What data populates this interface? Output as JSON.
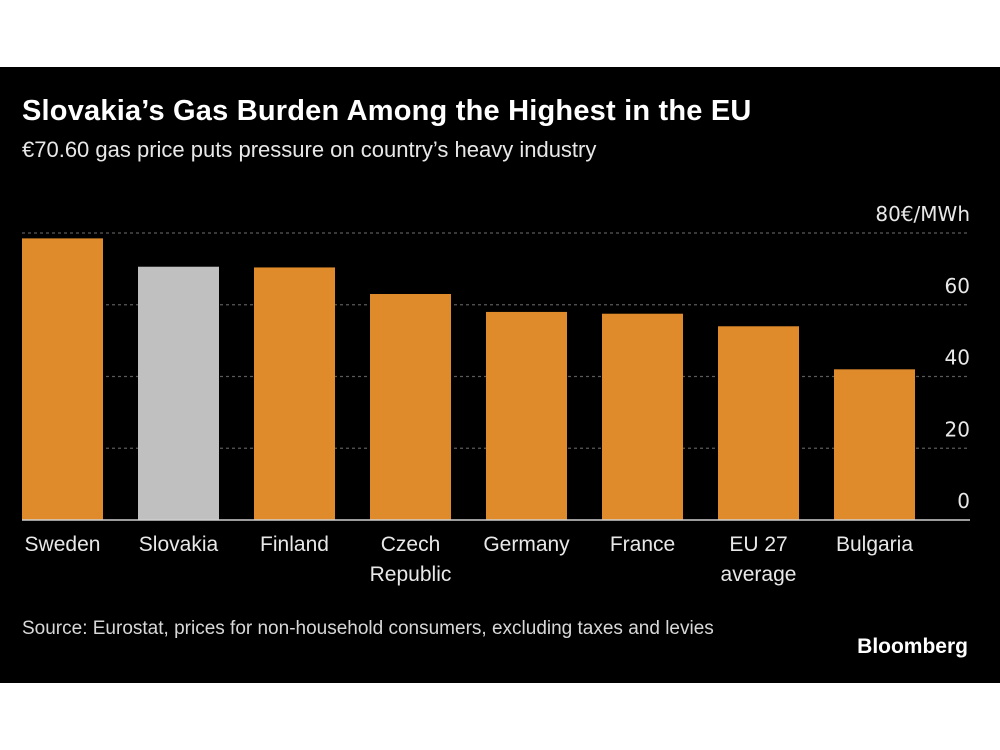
{
  "header": {
    "title": "Slovakia’s Gas Burden Among the Highest in the EU",
    "subtitle": "€70.60 gas price puts pressure on country’s heavy industry"
  },
  "footer": {
    "source": "Source: Eurostat, prices for non-household consumers, excluding taxes and levies",
    "brand": "Bloomberg"
  },
  "colors": {
    "background": "#000000",
    "bar": "#e08b2b",
    "highlight": "#c0c0c0",
    "grid": "#5a5a5a",
    "text": "#ffffff"
  },
  "chart_data": {
    "type": "bar",
    "unit": "€/MWh",
    "categories": [
      [
        "Sweden"
      ],
      [
        "Slovakia"
      ],
      [
        "Finland"
      ],
      [
        "Czech",
        "Republic"
      ],
      [
        "Germany"
      ],
      [
        "France"
      ],
      [
        "EU 27",
        "average"
      ],
      [
        "Bulgaria"
      ]
    ],
    "values": [
      78.5,
      70.6,
      70.4,
      63.0,
      58.0,
      57.5,
      54.0,
      42.0
    ],
    "highlight_index": 1,
    "ylim": [
      0,
      80
    ],
    "yticks": [
      0,
      20,
      40,
      60,
      80
    ],
    "ytick_labels": [
      "0",
      "20",
      "40",
      "60",
      "80€/MWh"
    ],
    "grid": true,
    "legend": "none"
  }
}
